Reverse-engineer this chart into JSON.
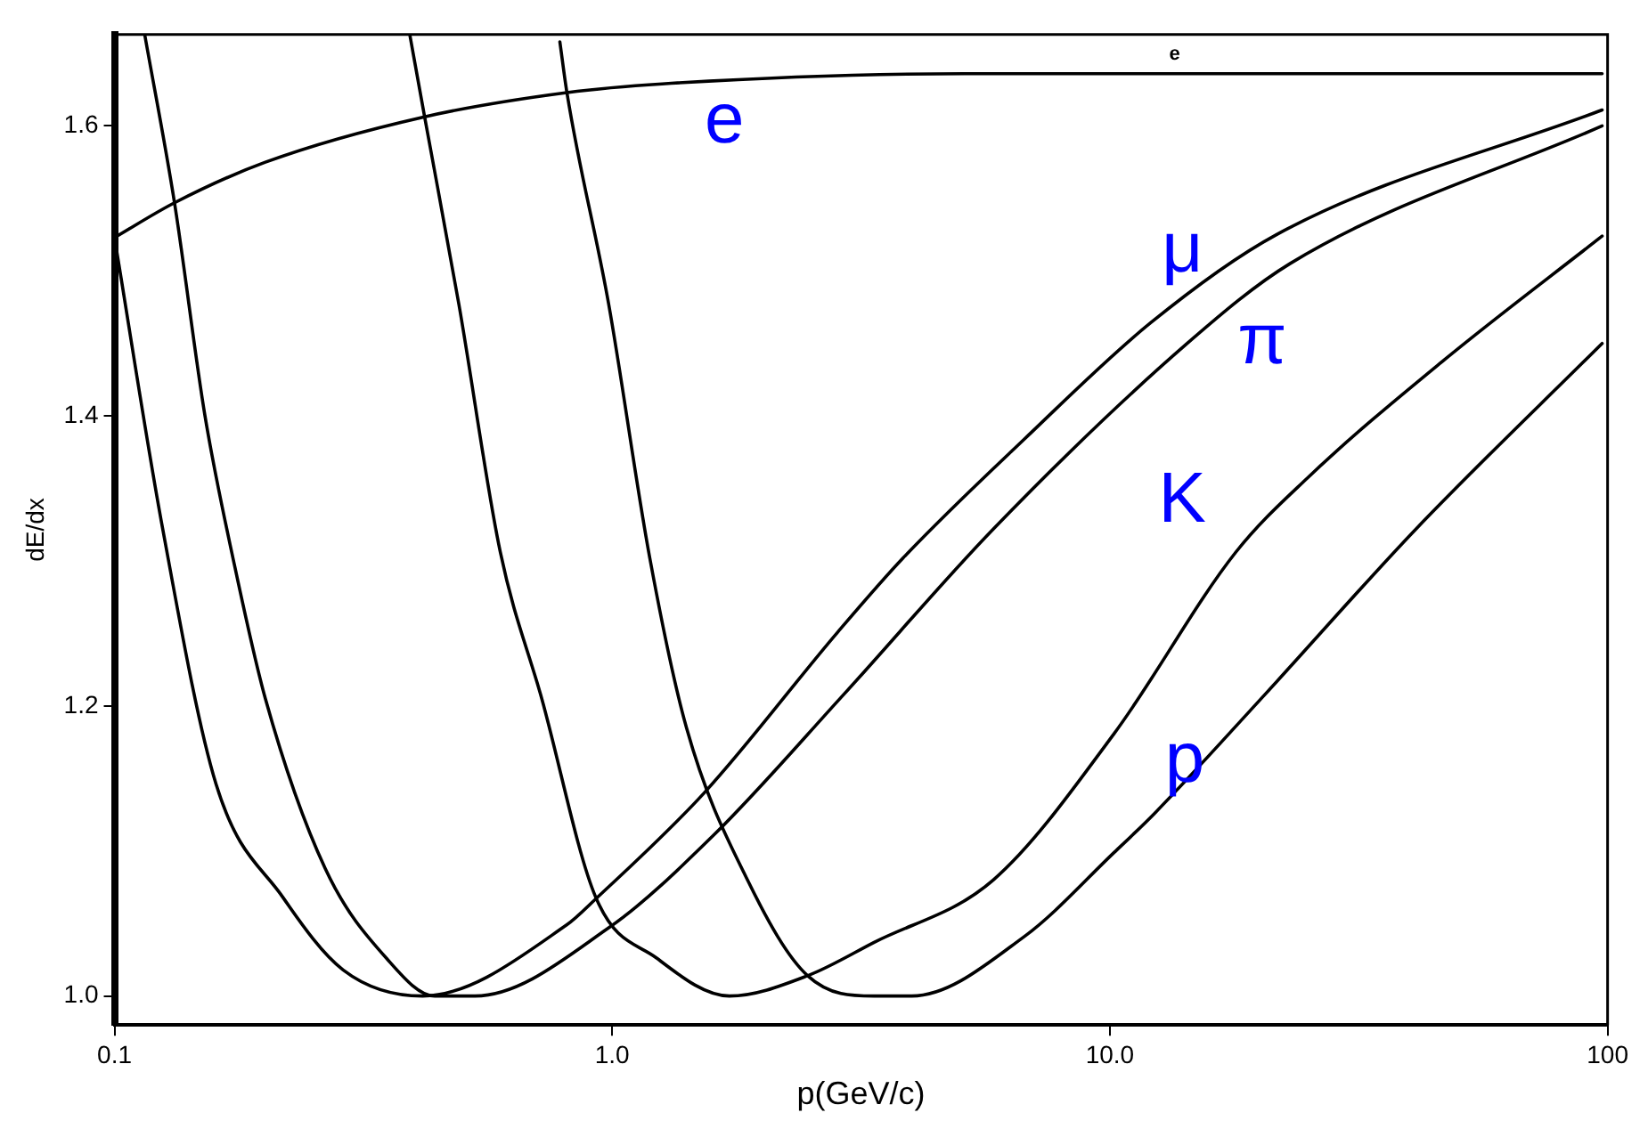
{
  "chart_data": {
    "type": "line",
    "xlabel": "p(GeV/c)",
    "ylabel": "dE/dx",
    "log": "x",
    "xlim": [
      0.1,
      100
    ],
    "ylim": [
      0.98,
      1.663
    ],
    "xticks": [
      0.1,
      {
        "value": 1,
        "label": "1.0"
      },
      {
        "value": 10,
        "label": "10.0"
      },
      100
    ],
    "yticks": [
      {
        "value": 1,
        "label": "1.0"
      },
      {
        "value": 1.2,
        "label": "1.2"
      },
      {
        "value": 1.4,
        "label": "1.4"
      },
      {
        "value": 1.6,
        "label": "1.6"
      }
    ],
    "marker": "none",
    "line_style": "solid",
    "series": [
      {
        "name": "μ",
        "color": "#000000",
        "x": [
          0.1,
          0.125,
          0.16,
          0.218,
          0.288,
          0.416,
          0.81,
          0.927,
          1.53,
          2.84,
          3.84,
          6.73,
          12.05,
          21.6,
          97.5
        ],
        "values": [
          1.523,
          1.322,
          1.146,
          1.068,
          1.018,
          1.0,
          1.049,
          1.067,
          1.14,
          1.251,
          1.302,
          1.384,
          1.464,
          1.525,
          1.611
        ]
      },
      {
        "name": "π",
        "color": "#000000",
        "x": [
          0.115,
          0.132,
          0.152,
          0.174,
          0.201,
          0.265,
          0.352,
          0.44,
          0.53,
          0.984,
          1.6,
          2.92,
          5.83,
          14.3,
          23.0,
          97.5
        ],
        "values": [
          1.663,
          1.547,
          1.4,
          1.298,
          1.205,
          1.088,
          1.026,
          1.0,
          1.0,
          1.047,
          1.111,
          1.208,
          1.322,
          1.45,
          1.505,
          1.6
        ]
      },
      {
        "name": "K",
        "color": "#000000",
        "x": [
          0.392,
          0.42,
          0.492,
          0.596,
          0.722,
          0.927,
          1.23,
          1.72,
          2.47,
          3.36,
          5.83,
          10.2,
          17.9,
          24.9,
          47.1,
          97.5
        ],
        "values": [
          1.663,
          1.606,
          1.477,
          1.306,
          1.205,
          1.068,
          1.026,
          1.0,
          1.014,
          1.037,
          1.08,
          1.181,
          1.306,
          1.357,
          1.439,
          1.524
        ]
      },
      {
        "name": "p",
        "color": "#000000",
        "x": [
          0.785,
          0.811,
          0.984,
          1.19,
          1.41,
          1.87,
          2.47,
          3.36,
          4.0,
          6.73,
          10.2,
          12.3,
          20.5,
          41.2,
          97.5
        ],
        "values": [
          1.658,
          1.623,
          1.477,
          1.302,
          1.185,
          1.08,
          1.014,
          1.0,
          1.0,
          1.041,
          1.099,
          1.126,
          1.208,
          1.322,
          1.45
        ]
      },
      {
        "name": "e",
        "color": "#000000",
        "x": [
          0.1,
          0.132,
          0.201,
          0.416,
          0.811,
          1.26,
          5.1,
          13.7,
          97.5
        ],
        "values": [
          1.523,
          1.547,
          1.575,
          1.606,
          1.623,
          1.629,
          1.636,
          1.636,
          1.636
        ]
      }
    ],
    "annotations": [
      "e"
    ]
  }
}
